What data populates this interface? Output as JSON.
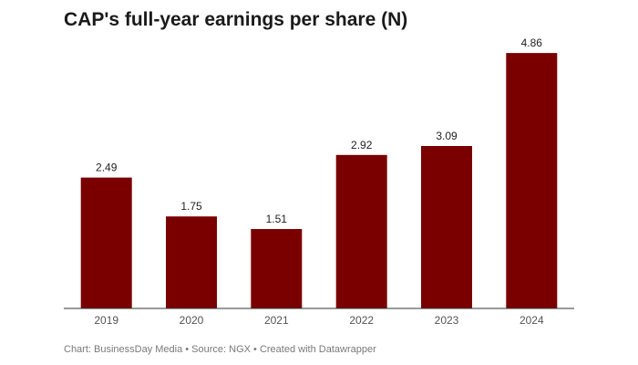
{
  "chart_data": {
    "type": "bar",
    "title": "CAP's full-year earnings per share (N)",
    "categories": [
      "2019",
      "2020",
      "2021",
      "2022",
      "2023",
      "2024"
    ],
    "values": [
      2.49,
      1.75,
      1.51,
      2.92,
      3.09,
      4.86
    ],
    "value_labels": [
      "2.49",
      "1.75",
      "1.51",
      "2.92",
      "3.09",
      "4.86"
    ],
    "xlabel": "",
    "ylabel": "",
    "ylim": [
      0,
      5
    ],
    "grid": false,
    "legend": "none",
    "bar_color": "#7a0000",
    "axis_color": "#333333"
  },
  "footer": {
    "text": "Chart: BusinessDay Media • Source: NGX • Created with Datawrapper"
  }
}
